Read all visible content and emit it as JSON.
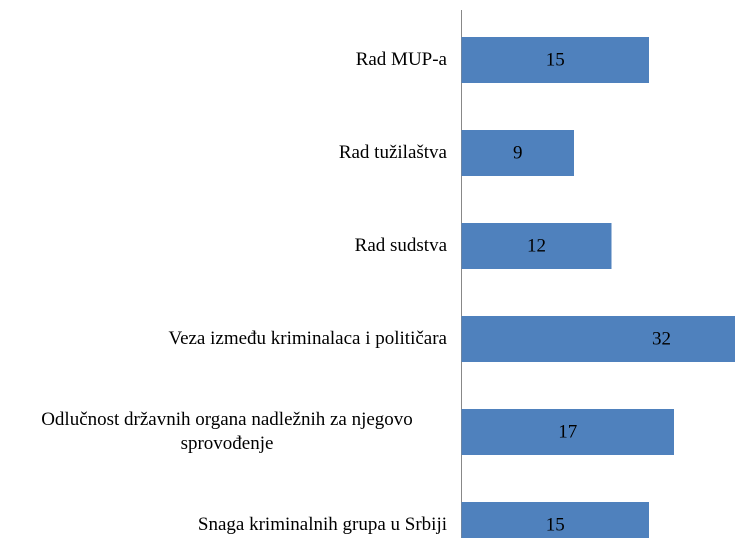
{
  "chart_data": {
    "type": "barh",
    "categories": [
      "Rad MUP-a",
      "Rad tužilaštva",
      "Rad sudstva",
      "Veza između kriminalaca i političara",
      "Odlučnost državnih organa nadležnih za njegovo sprovođenje",
      "Snaga kriminalnih grupa u Srbiji"
    ],
    "values": [
      15,
      9,
      12,
      32,
      17,
      15
    ],
    "color": "#4f81bd",
    "xlim": [
      0,
      40
    ]
  }
}
